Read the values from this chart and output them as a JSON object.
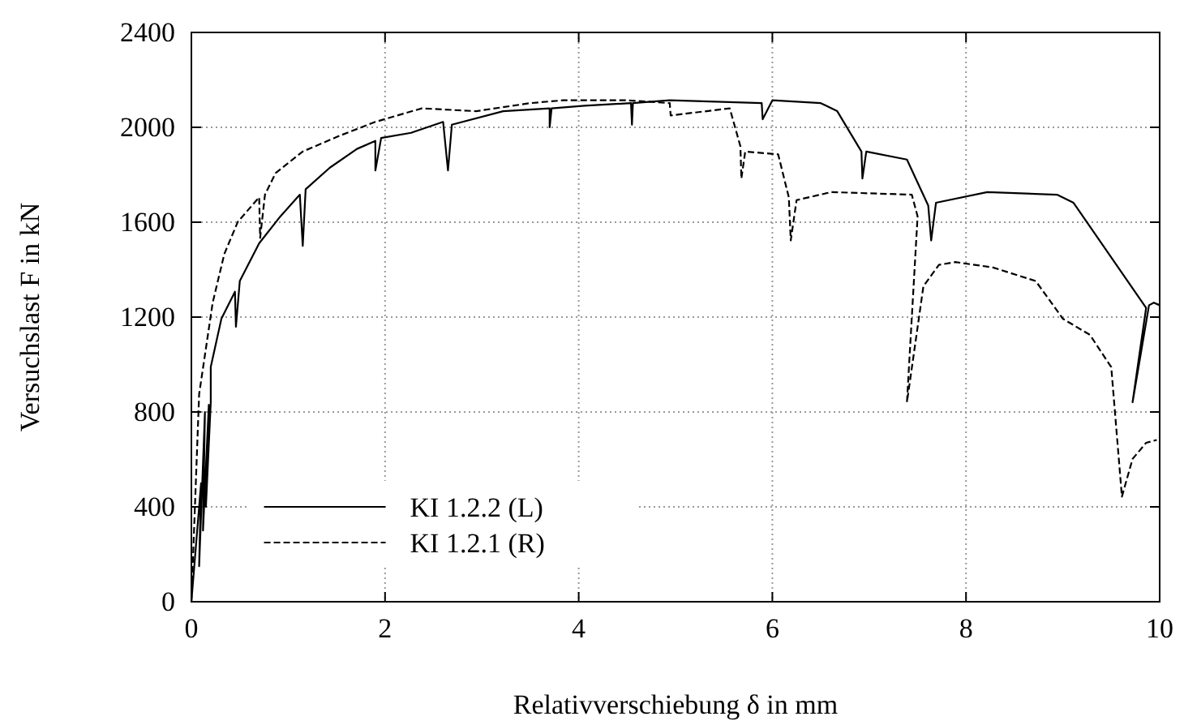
{
  "chart_data": {
    "type": "line",
    "xlabel": "Relativverschiebung δ in mm",
    "ylabel": "Versuchslast F in kN",
    "xlim": [
      0,
      10
    ],
    "ylim": [
      0,
      2400
    ],
    "xticks": [
      0,
      2,
      4,
      6,
      8,
      10
    ],
    "yticks": [
      0,
      400,
      800,
      1200,
      1600,
      2000,
      2400
    ],
    "grid": true,
    "legend": "bottom",
    "series": [
      {
        "name": "KI 1.2.2 (L)",
        "color": "#000000",
        "line_style": "solid",
        "x": [
          0,
          0.05,
          0.1,
          0.08,
          0.14,
          0.12,
          0.18,
          0.15,
          0.2,
          0.2,
          0.31,
          0.45,
          0.46,
          0.5,
          0.7,
          0.92,
          1.12,
          1.15,
          1.18,
          1.43,
          1.71,
          1.9,
          1.9,
          1.96,
          2.27,
          2.6,
          2.65,
          2.69,
          3.22,
          3.7,
          3.7,
          3.72,
          4.06,
          4.54,
          4.55,
          4.56,
          4.94,
          5.89,
          5.9,
          6,
          6.5,
          6.67,
          6.92,
          6.93,
          6.97,
          7.39,
          7.61,
          7.64,
          7.69,
          8.22,
          8.94,
          9.11,
          9.86,
          9.72,
          9.89,
          9.94,
          10
        ],
        "values": [
          0,
          250,
          500,
          150,
          800,
          300,
          830,
          400,
          840,
          990,
          1193,
          1307,
          1159,
          1352,
          1511,
          1625,
          1716,
          1500,
          1739,
          1830,
          1909,
          1943,
          1818,
          1955,
          1977,
          2023,
          1818,
          2011,
          2068,
          2080,
          2000,
          2080,
          2091,
          2102,
          2011,
          2102,
          2114,
          2102,
          2034,
          2114,
          2102,
          2068,
          1898,
          1784,
          1898,
          1864,
          1670,
          1523,
          1682,
          1727,
          1716,
          1682,
          1239,
          841,
          1250,
          1261,
          1250
        ]
      },
      {
        "name": "KI 1.2.1 (R)",
        "color": "#000000",
        "line_style": "dashed",
        "x": [
          0,
          0.08,
          0.22,
          0.34,
          0.48,
          0.7,
          0.71,
          0.76,
          0.87,
          1.15,
          1.54,
          1.9,
          2.38,
          2.94,
          3.5,
          3.84,
          4.5,
          4.94,
          4.95,
          5.56,
          5.67,
          5.68,
          5.72,
          6.06,
          6.17,
          6.19,
          6.25,
          6.61,
          7.44,
          7.5,
          7.39,
          7.56,
          7.72,
          7.89,
          8.28,
          8.72,
          9,
          9.28,
          9.5,
          9.61,
          9.72,
          9.86,
          9.97
        ],
        "values": [
          0,
          875,
          1261,
          1466,
          1602,
          1705,
          1534,
          1716,
          1807,
          1898,
          1966,
          2023,
          2080,
          2068,
          2102,
          2114,
          2114,
          2102,
          2050,
          2080,
          1920,
          1784,
          1898,
          1886,
          1705,
          1523,
          1693,
          1727,
          1716,
          1625,
          841,
          1330,
          1420,
          1432,
          1409,
          1352,
          1193,
          1125,
          989,
          443,
          602,
          670,
          682
        ]
      }
    ]
  }
}
